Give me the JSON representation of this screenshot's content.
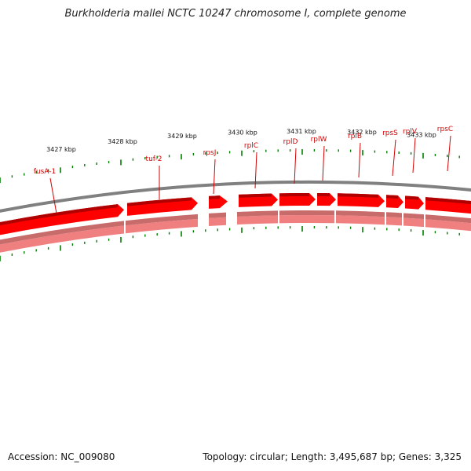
{
  "title": "Burkholderia mallei NCTC 10247 chromosome I, complete genome",
  "footer": {
    "accession_label": "Accession:",
    "accession": "NC_009080",
    "topology_label": "Topology:",
    "topology": "circular",
    "length_label": "Length:",
    "length": "3,495,687 bp",
    "genes_label": "Genes:",
    "genes": "3,325"
  },
  "genes": [
    {
      "label": "fusA-1"
    },
    {
      "label": "tuf-2"
    },
    {
      "label": "rpsJ"
    },
    {
      "label": "rplC"
    },
    {
      "label": "rplD"
    },
    {
      "label": "rplW"
    },
    {
      "label": "rplB"
    },
    {
      "label": "rpsS"
    },
    {
      "label": "rplV"
    },
    {
      "label": "rpsC"
    }
  ],
  "kbp_labels": [
    "3427 kbp",
    "3428 kbp",
    "3429 kbp",
    "3430 kbp",
    "3431 kbp",
    "3432 kbp",
    "3433 kbp"
  ],
  "colors": {
    "gene_fill": "#ff0000",
    "gene_light": "#f08080",
    "tick": "#008000",
    "backbone": "#808080",
    "label": "#d40000"
  }
}
